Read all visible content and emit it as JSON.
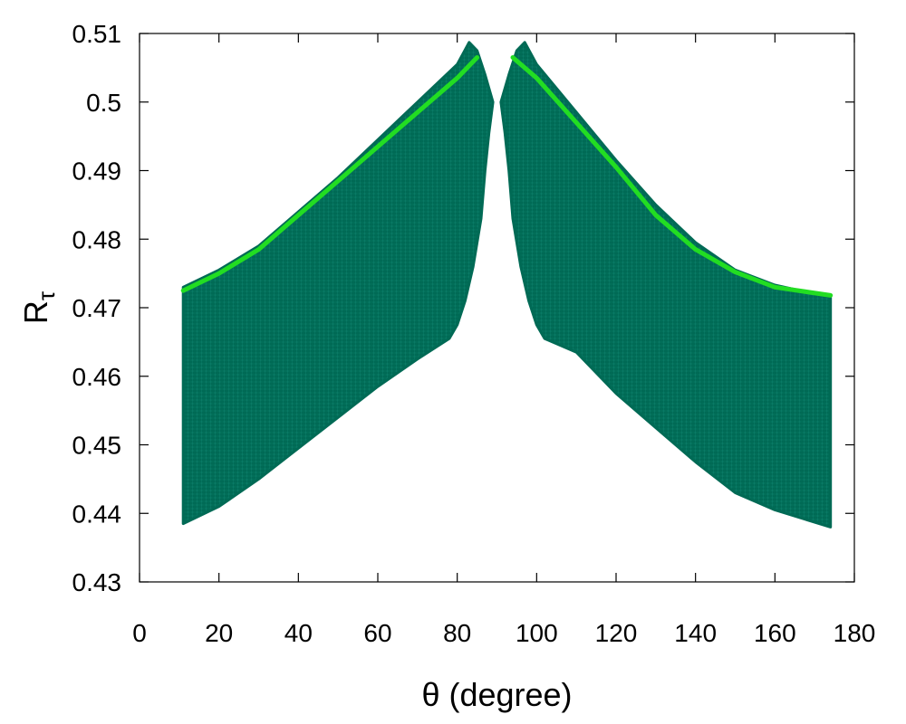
{
  "chart_data": {
    "type": "scatter",
    "title": "",
    "xlabel": "θ (degree)",
    "ylabel": {
      "base": "R",
      "subscript": "τ"
    },
    "xlim": [
      0,
      180
    ],
    "ylim": [
      0.43,
      0.51
    ],
    "x_ticks": [
      0,
      20,
      40,
      60,
      80,
      100,
      120,
      140,
      160,
      180
    ],
    "y_ticks": [
      0.43,
      0.44,
      0.45,
      0.46,
      0.47,
      0.48,
      0.49,
      0.5,
      0.51
    ],
    "grid": false,
    "legend": "none",
    "series": [
      {
        "style": "dense-plus-markers",
        "color": "#006a55",
        "regions": [
          {
            "upper": [
              [
                11,
                0.473
              ],
              [
                20,
                0.4755
              ],
              [
                30,
                0.479
              ],
              [
                40,
                0.484
              ],
              [
                50,
                0.489
              ],
              [
                60,
                0.4945
              ],
              [
                70,
                0.5
              ],
              [
                80,
                0.5055
              ],
              [
                83,
                0.5087
              ],
              [
                85,
                0.5075
              ],
              [
                87,
                0.504
              ],
              [
                89,
                0.5
              ]
            ],
            "lower": [
              [
                11,
                0.4385
              ],
              [
                20,
                0.441
              ],
              [
                30,
                0.445
              ],
              [
                40,
                0.4495
              ],
              [
                50,
                0.454
              ],
              [
                60,
                0.4585
              ],
              [
                70,
                0.4625
              ],
              [
                78,
                0.4655
              ],
              [
                80,
                0.4675
              ],
              [
                82,
                0.471
              ],
              [
                84,
                0.476
              ],
              [
                86,
                0.483
              ],
              [
                87,
                0.49
              ],
              [
                88,
                0.4955
              ],
              [
                89,
                0.5
              ]
            ]
          },
          {
            "upper": [
              [
                91,
                0.5
              ],
              [
                93,
                0.504
              ],
              [
                95,
                0.5075
              ],
              [
                97,
                0.5087
              ],
              [
                100,
                0.5055
              ],
              [
                110,
                0.4985
              ],
              [
                120,
                0.4915
              ],
              [
                130,
                0.485
              ],
              [
                140,
                0.4795
              ],
              [
                150,
                0.4755
              ],
              [
                160,
                0.4733
              ],
              [
                174,
                0.4715
              ]
            ],
            "lower": [
              [
                91,
                0.5
              ],
              [
                92,
                0.4955
              ],
              [
                93,
                0.49
              ],
              [
                94,
                0.483
              ],
              [
                96,
                0.476
              ],
              [
                98,
                0.471
              ],
              [
                100,
                0.4675
              ],
              [
                102,
                0.4655
              ],
              [
                110,
                0.4635
              ],
              [
                120,
                0.4575
              ],
              [
                130,
                0.4525
              ],
              [
                140,
                0.4475
              ],
              [
                150,
                0.443
              ],
              [
                160,
                0.4405
              ],
              [
                174,
                0.438
              ]
            ]
          }
        ]
      },
      {
        "style": "line",
        "color": "#22dd22",
        "segments": [
          [
            [
              11,
              0.4725
            ],
            [
              20,
              0.475
            ],
            [
              30,
              0.4785
            ],
            [
              40,
              0.4835
            ],
            [
              50,
              0.4885
            ],
            [
              60,
              0.4935
            ],
            [
              70,
              0.4985
            ],
            [
              80,
              0.5035
            ],
            [
              85,
              0.5065
            ]
          ],
          [
            [
              94,
              0.5065
            ],
            [
              100,
              0.5035
            ],
            [
              110,
              0.497
            ],
            [
              120,
              0.4905
            ],
            [
              130,
              0.4835
            ],
            [
              140,
              0.4785
            ],
            [
              150,
              0.4752
            ],
            [
              160,
              0.473
            ],
            [
              174,
              0.4718
            ]
          ]
        ]
      }
    ]
  }
}
